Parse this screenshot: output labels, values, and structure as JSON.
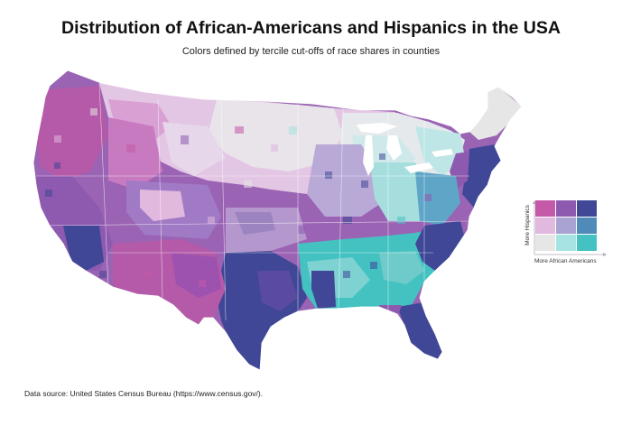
{
  "title": "Distribution of African-Americans and Hispanics in the USA",
  "subtitle": "Colors defined by tercile cut-offs of race shares in counties",
  "legend": {
    "y_label": "More Hispanics",
    "x_label": "More African Americans",
    "colors": [
      [
        "#c45aa8",
        "#8e5ab0",
        "#3f4796"
      ],
      [
        "#e1b8de",
        "#a9a3d2",
        "#4f8ab9"
      ],
      [
        "#e6e6e6",
        "#a6e3e2",
        "#44c2c2"
      ]
    ]
  },
  "source": "Data source: United States Census Bureau (https://www.census.gov/)."
}
